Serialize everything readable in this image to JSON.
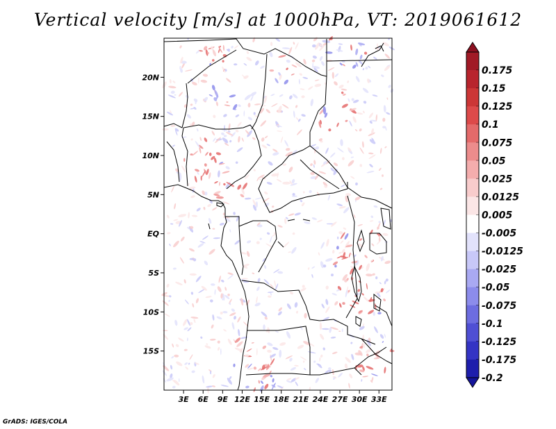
{
  "title": "Vertical velocity [m/s] at 1000hPa, VT: 2019061612",
  "credit": "GrADS: IGES/COLA",
  "map": {
    "lat_range": [
      -20,
      25
    ],
    "lon_range": [
      0,
      35
    ],
    "lat_ticks": [
      {
        "value": 20,
        "label": "20N"
      },
      {
        "value": 15,
        "label": "15N"
      },
      {
        "value": 10,
        "label": "10N"
      },
      {
        "value": 5,
        "label": "5N"
      },
      {
        "value": 0,
        "label": "EQ"
      },
      {
        "value": -5,
        "label": "5S"
      },
      {
        "value": -10,
        "label": "10S"
      },
      {
        "value": -15,
        "label": "15S"
      }
    ],
    "lon_ticks": [
      {
        "value": 3,
        "label": "3E"
      },
      {
        "value": 6,
        "label": "6E"
      },
      {
        "value": 9,
        "label": "9E"
      },
      {
        "value": 12,
        "label": "12E"
      },
      {
        "value": 15,
        "label": "15E"
      },
      {
        "value": 18,
        "label": "18E"
      },
      {
        "value": 21,
        "label": "21E"
      },
      {
        "value": 24,
        "label": "24E"
      },
      {
        "value": 27,
        "label": "27E"
      },
      {
        "value": 30,
        "label": "30E"
      },
      {
        "value": 33,
        "label": "33E"
      }
    ]
  },
  "colorbar": {
    "levels": [
      {
        "label": "0.175",
        "color": "#a11a26"
      },
      {
        "label": "0.15",
        "color": "#b8242d"
      },
      {
        "label": "0.125",
        "color": "#cc3636"
      },
      {
        "label": "0.1",
        "color": "#dd4a4a"
      },
      {
        "label": "0.075",
        "color": "#e46a6a"
      },
      {
        "label": "0.05",
        "color": "#ec8c8c"
      },
      {
        "label": "0.025",
        "color": "#f4adad"
      },
      {
        "label": "0.0125",
        "color": "#f8cccc"
      },
      {
        "label": "0.005",
        "color": "#fbe6e6"
      },
      {
        "label": "-0.005",
        "color": "#ffffff"
      },
      {
        "label": "-0.0125",
        "color": "#e2e2fb"
      },
      {
        "label": "-0.025",
        "color": "#c8c8f8"
      },
      {
        "label": "-0.05",
        "color": "#a9a9f2"
      },
      {
        "label": "-0.075",
        "color": "#8c8ceb"
      },
      {
        "label": "-0.1",
        "color": "#6d6de0"
      },
      {
        "label": "-0.125",
        "color": "#4f4fd4"
      },
      {
        "label": "-0.175",
        "color": "#3434c4"
      },
      {
        "label": "-0.2",
        "color": "#1e1eac"
      }
    ],
    "top_arrow_color": "#8c1020",
    "bottom_arrow_color": "#14149a"
  }
}
